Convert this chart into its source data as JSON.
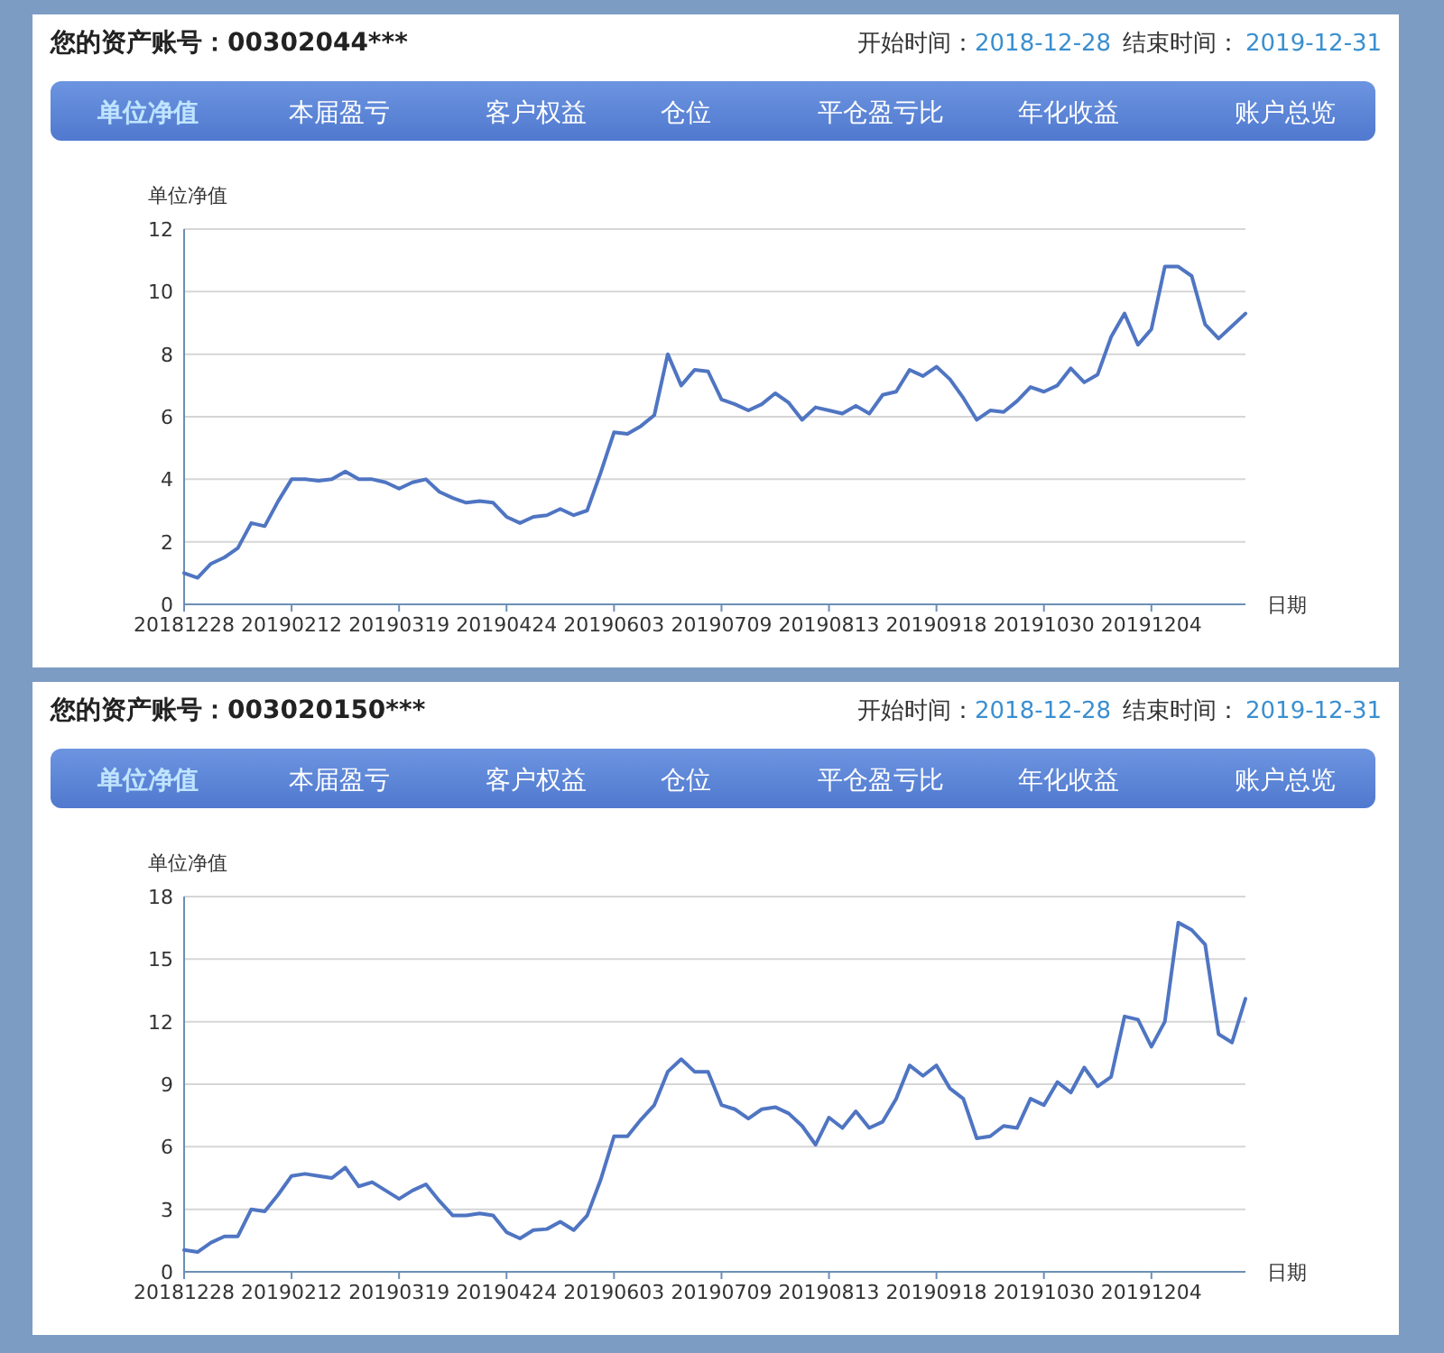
{
  "chart_data": [
    {
      "type": "line",
      "title": "您的资产账号：00302044***",
      "annotations": [
        "开始时间：",
        "2018-12-28",
        "结束时间：",
        "2019-12-31",
        "单位净值",
        "本届盈亏",
        "客户权益",
        "仓位",
        "平仓盈亏比",
        "年化收益",
        "账户总览"
      ],
      "ylabel": "单位净值",
      "xlabel": "日期",
      "color": "#4f75c2",
      "grid": "y",
      "ylim": [
        0,
        12
      ],
      "yticks": [
        0,
        2,
        4,
        6,
        8,
        10,
        12
      ],
      "categories": [
        "20181228",
        null,
        null,
        null,
        null,
        null,
        null,
        null,
        "20190212",
        null,
        null,
        null,
        null,
        null,
        null,
        null,
        "20190319",
        null,
        null,
        null,
        null,
        null,
        null,
        null,
        "20190424",
        null,
        null,
        null,
        null,
        null,
        null,
        null,
        "20190603",
        null,
        null,
        null,
        null,
        null,
        null,
        null,
        "20190709",
        null,
        null,
        null,
        null,
        null,
        null,
        null,
        "20190813",
        null,
        null,
        null,
        null,
        null,
        null,
        null,
        "20190918",
        null,
        null,
        null,
        null,
        null,
        null,
        null,
        "20191030",
        null,
        null,
        null,
        null,
        null,
        null,
        null,
        "20191204",
        null,
        null,
        null,
        null,
        null,
        null,
        null
      ],
      "values": [
        1.0,
        0.85,
        1.3,
        1.5,
        1.8,
        2.6,
        2.5,
        3.3,
        4.0,
        4.0,
        3.95,
        4.0,
        4.25,
        4.0,
        4.0,
        3.9,
        3.7,
        3.9,
        4.0,
        3.6,
        3.4,
        3.25,
        3.3,
        3.25,
        2.8,
        2.6,
        2.8,
        2.85,
        3.05,
        2.85,
        3.0,
        4.2,
        5.5,
        5.45,
        5.7,
        6.05,
        8.0,
        7.0,
        7.5,
        7.45,
        6.55,
        6.4,
        6.2,
        6.4,
        6.75,
        6.45,
        5.9,
        6.3,
        6.2,
        6.1,
        6.35,
        6.1,
        6.7,
        6.8,
        7.5,
        7.3,
        7.6,
        7.2,
        6.6,
        5.9,
        6.2,
        6.15,
        6.5,
        6.95,
        6.8,
        7.0,
        7.55,
        7.1,
        7.35,
        8.55,
        9.3,
        8.3,
        8.8,
        10.8,
        10.8,
        10.5,
        8.95,
        8.5,
        8.9,
        9.3
      ]
    },
    {
      "type": "line",
      "title": "您的资产账号：003020150***",
      "annotations": [
        "开始时间：",
        "2018-12-28",
        "结束时间：",
        "2019-12-31",
        "单位净值",
        "本届盈亏",
        "客户权益",
        "仓位",
        "平仓盈亏比",
        "年化收益",
        "账户总览"
      ],
      "ylabel": "单位净值",
      "xlabel": "日期",
      "color": "#4f75c2",
      "grid": "y",
      "ylim": [
        0,
        18
      ],
      "yticks": [
        0,
        3,
        6,
        9,
        12,
        15,
        18
      ],
      "categories": [
        "20181228",
        null,
        null,
        null,
        null,
        null,
        null,
        null,
        "20190212",
        null,
        null,
        null,
        null,
        null,
        null,
        null,
        "20190319",
        null,
        null,
        null,
        null,
        null,
        null,
        null,
        "20190424",
        null,
        null,
        null,
        null,
        null,
        null,
        null,
        "20190603",
        null,
        null,
        null,
        null,
        null,
        null,
        null,
        "20190709",
        null,
        null,
        null,
        null,
        null,
        null,
        null,
        "20190813",
        null,
        null,
        null,
        null,
        null,
        null,
        null,
        "20190918",
        null,
        null,
        null,
        null,
        null,
        null,
        null,
        "20191030",
        null,
        null,
        null,
        null,
        null,
        null,
        null,
        "20191204",
        null,
        null,
        null,
        null,
        null,
        null,
        null
      ],
      "values": [
        1.05,
        0.95,
        1.4,
        1.7,
        1.7,
        3.0,
        2.9,
        3.7,
        4.6,
        4.7,
        4.6,
        4.5,
        5.0,
        4.1,
        4.3,
        3.9,
        3.5,
        3.9,
        4.2,
        3.4,
        2.7,
        2.7,
        2.8,
        2.7,
        1.9,
        1.6,
        2.0,
        2.05,
        2.4,
        2.0,
        2.7,
        4.4,
        6.5,
        6.5,
        7.3,
        8.0,
        9.6,
        10.2,
        9.6,
        9.6,
        8.0,
        7.8,
        7.35,
        7.8,
        7.9,
        7.6,
        7.0,
        6.1,
        7.4,
        6.9,
        7.7,
        6.9,
        7.2,
        8.3,
        9.9,
        9.4,
        9.9,
        8.8,
        8.3,
        6.4,
        6.5,
        7.0,
        6.9,
        8.3,
        8.0,
        9.1,
        8.6,
        9.8,
        8.9,
        9.35,
        12.25,
        12.1,
        10.8,
        12.0,
        16.75,
        16.4,
        15.7,
        11.4,
        11.0,
        13.1
      ]
    }
  ]
}
